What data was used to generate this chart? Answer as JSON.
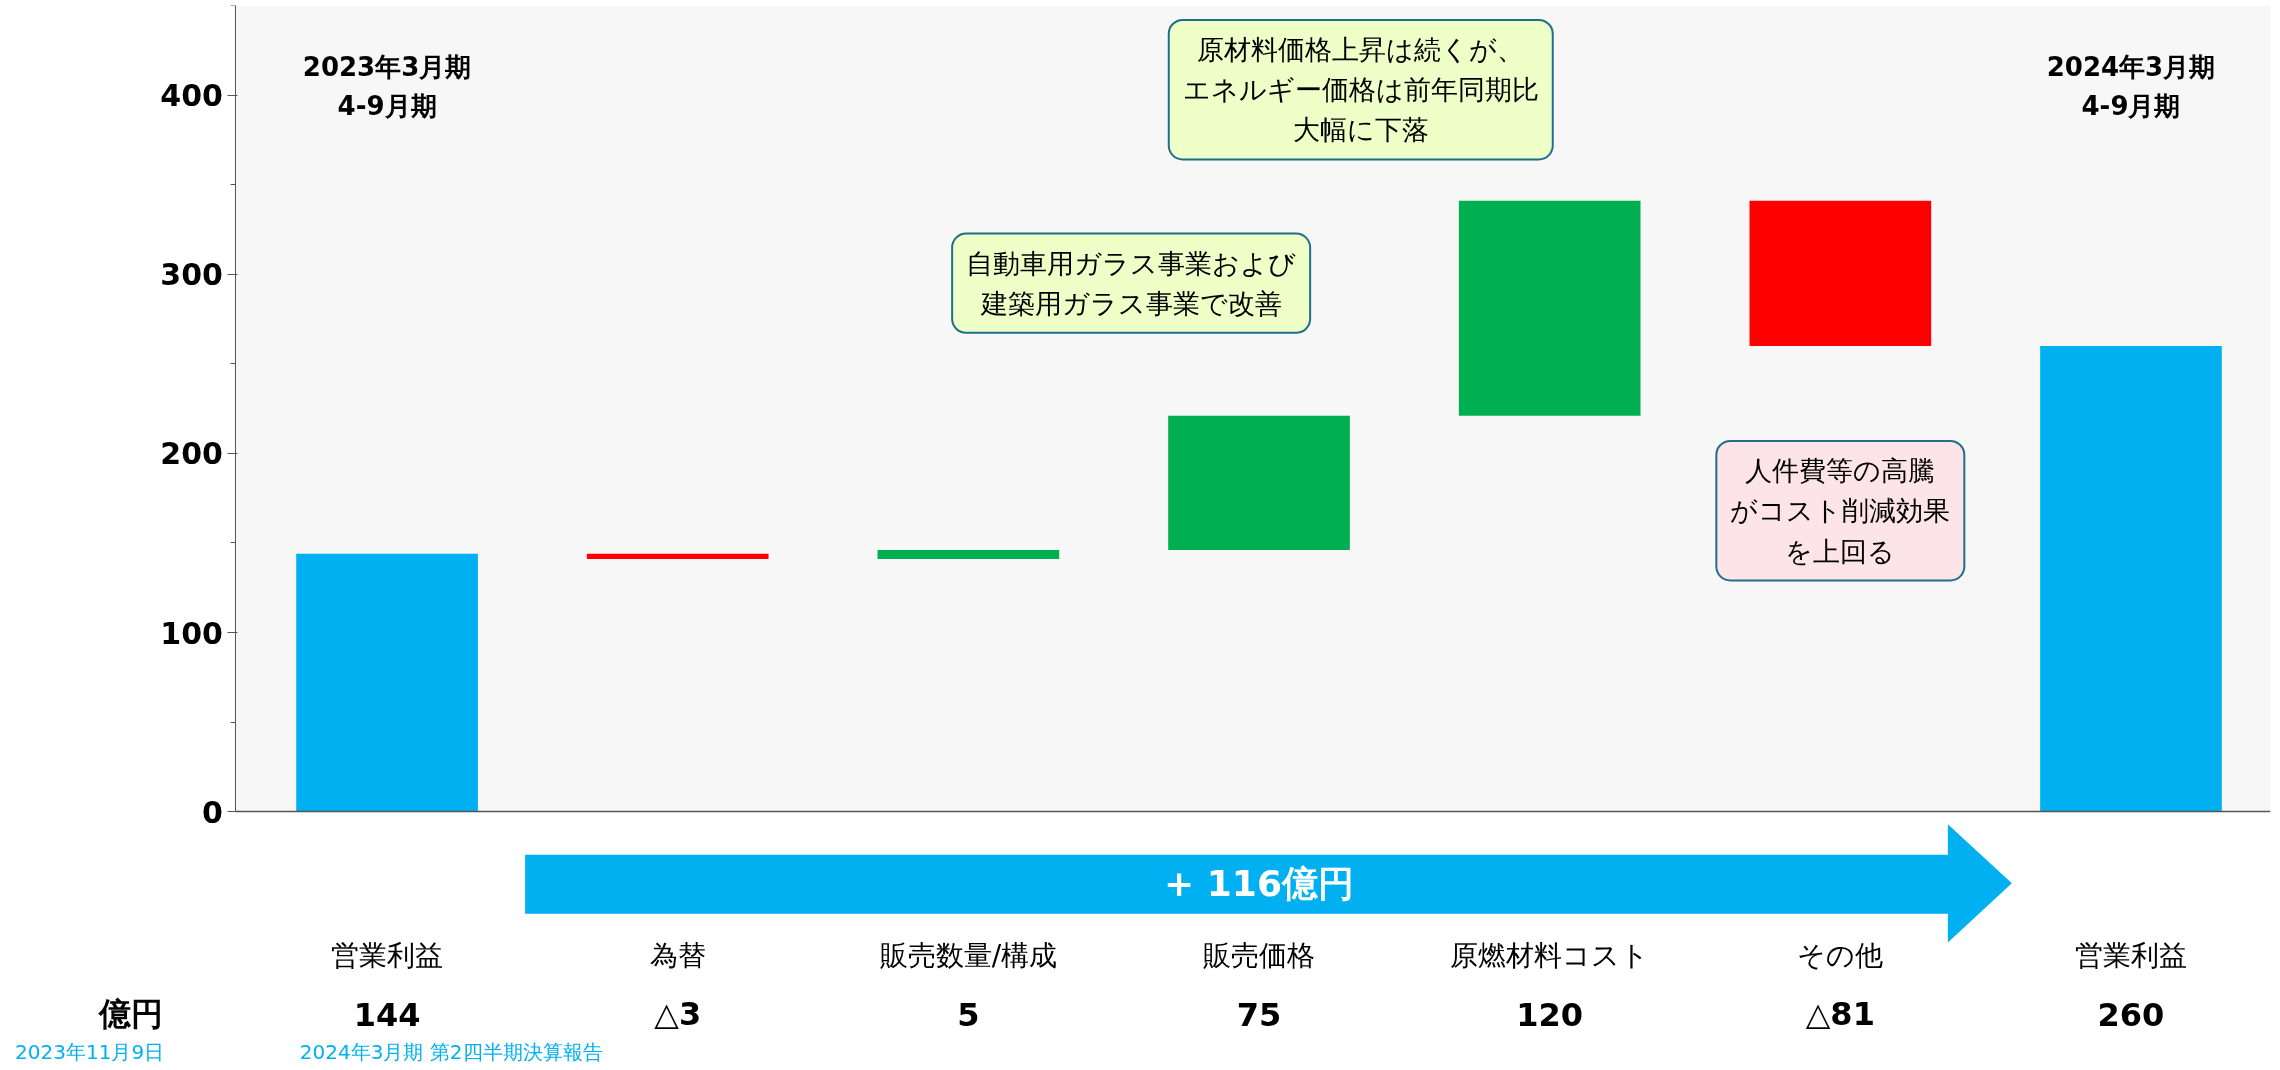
{
  "chart_data": {
    "type": "bar",
    "categories": [
      "営業利益",
      "為替",
      "販売数量/構成",
      "販売価格",
      "原燃材料コスト",
      "その他",
      "営業利益"
    ],
    "values": [
      144,
      -3,
      5,
      75,
      120,
      -81,
      260
    ],
    "base": [
      0,
      144,
      141,
      146,
      221,
      341,
      0
    ],
    "colors": [
      "#00b0f0",
      "#ff0000",
      "#00b050",
      "#00b050",
      "#00b050",
      "#ff0000",
      "#00b0f0"
    ],
    "value_labels": [
      "144",
      "△3",
      "5",
      "75",
      "120",
      "△81",
      "260"
    ],
    "ylim": [
      0,
      450
    ],
    "yticks": [
      0,
      100,
      200,
      300,
      400
    ],
    "grid": false,
    "tick_labels": "y",
    "annotations": [
      "2023年3月期\n4-9月期",
      "2024年3月期\n4-9月期",
      "自動車用ガラス事業および建築用ガラス事業で改善",
      "原材料価格上昇は続くが、エネルギー価格は前年同期比大幅に下落",
      "人件費等の高騰がコスト削減効果を上回る",
      "+ 116億円",
      "億円",
      "2023年11月9日",
      "2024年3月期 第2四半期決算報告"
    ]
  }
}
